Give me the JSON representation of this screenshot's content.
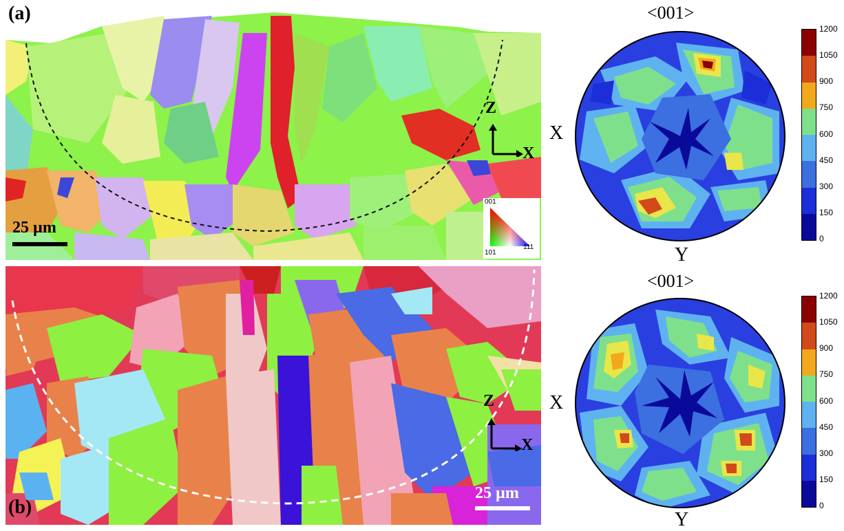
{
  "panel_a": {
    "label": "(a)",
    "scale_bar": "25 µm",
    "coord_z": "Z",
    "coord_x": "X",
    "ipf_key": {
      "top": "001",
      "left": "101",
      "right": "111"
    }
  },
  "panel_b": {
    "label": "(b)",
    "scale_bar": "25 µm",
    "coord_z": "Z",
    "coord_x": "X"
  },
  "pole_figure_a": {
    "title": "<001>",
    "left_label": "X",
    "bottom_label": "Y",
    "colorbar_ticks": [
      "1200",
      "1050",
      "900",
      "750",
      "600",
      "450",
      "300",
      "150",
      "0"
    ]
  },
  "pole_figure_b": {
    "title": "<001>",
    "left_label": "X",
    "bottom_label": "Y",
    "colorbar_ticks": [
      "1200",
      "1050",
      "900",
      "750",
      "600",
      "450",
      "300",
      "150",
      "0"
    ]
  },
  "colors": {
    "colorbar": [
      "#8b0000",
      "#d24a1a",
      "#f2a81c",
      "#e9e64a",
      "#7fe08c",
      "#5fb2f0",
      "#3c6fe0",
      "#1c2ed8",
      "#0a0a9a"
    ]
  }
}
